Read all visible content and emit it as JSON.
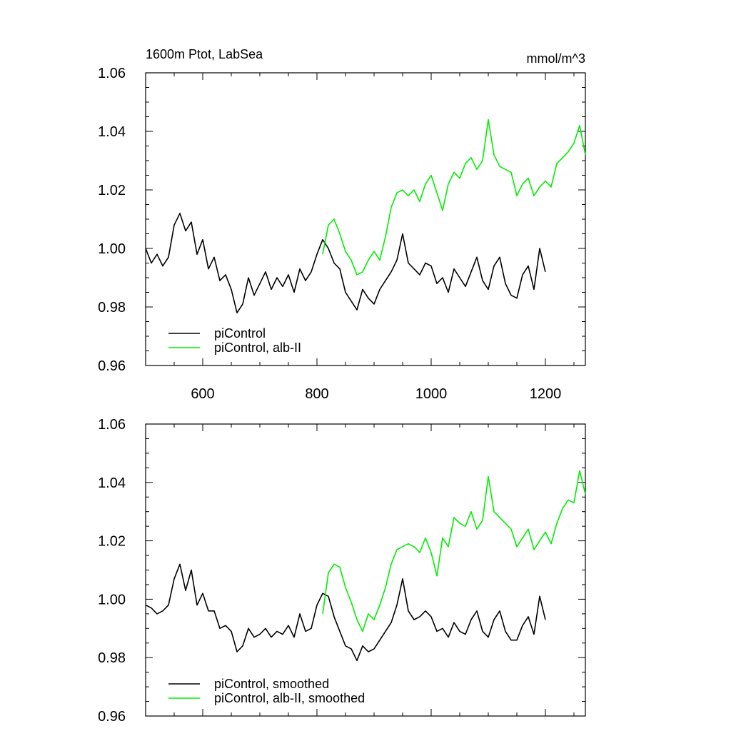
{
  "figure": {
    "left_title": "1600m Ptot, LabSea",
    "right_title": "mmol/m^3"
  },
  "chart_data": [
    {
      "type": "line",
      "xlabel": "",
      "ylabel": "",
      "xlim": [
        500,
        1270
      ],
      "ylim": [
        0.96,
        1.06
      ],
      "x_ticks": [
        600,
        800,
        1000,
        1200
      ],
      "x_tick_labels": [
        "600",
        "800",
        "1000",
        "1200"
      ],
      "y_ticks": [
        0.96,
        0.98,
        1.0,
        1.02,
        1.04,
        1.06
      ],
      "y_tick_labels": [
        "0.96",
        "0.98",
        "1.00",
        "1.02",
        "1.04",
        "1.06"
      ],
      "grid": false,
      "legend_position": "bottom-left",
      "series": [
        {
          "name": "piControl",
          "color": "#000000",
          "x": [
            500,
            510,
            520,
            530,
            540,
            550,
            560,
            570,
            580,
            590,
            600,
            610,
            620,
            630,
            640,
            650,
            660,
            670,
            680,
            690,
            700,
            710,
            720,
            730,
            740,
            750,
            760,
            770,
            780,
            790,
            800,
            810,
            820,
            830,
            840,
            850,
            860,
            870,
            880,
            890,
            900,
            910,
            920,
            930,
            940,
            950,
            960,
            970,
            980,
            990,
            1000,
            1010,
            1020,
            1030,
            1040,
            1050,
            1060,
            1070,
            1080,
            1090,
            1100,
            1110,
            1120,
            1130,
            1140,
            1150,
            1160,
            1170,
            1180,
            1190,
            1200
          ],
          "y": [
            1.0,
            0.995,
            0.998,
            0.994,
            0.997,
            1.008,
            1.012,
            1.006,
            1.009,
            0.998,
            1.003,
            0.993,
            0.997,
            0.989,
            0.991,
            0.986,
            0.978,
            0.981,
            0.99,
            0.984,
            0.988,
            0.992,
            0.986,
            0.99,
            0.987,
            0.991,
            0.985,
            0.993,
            0.989,
            0.992,
            0.998,
            1.003,
            1.0,
            0.995,
            0.993,
            0.985,
            0.982,
            0.979,
            0.986,
            0.983,
            0.981,
            0.986,
            0.989,
            0.992,
            0.996,
            1.005,
            0.995,
            0.993,
            0.991,
            0.995,
            0.994,
            0.988,
            0.99,
            0.985,
            0.993,
            0.99,
            0.987,
            0.992,
            0.997,
            0.989,
            0.986,
            0.994,
            0.997,
            0.988,
            0.984,
            0.983,
            0.991,
            0.994,
            0.986,
            1.0,
            0.992
          ]
        },
        {
          "name": "piControl, alb-II",
          "color": "#00ee00",
          "x": [
            810,
            820,
            830,
            840,
            850,
            860,
            870,
            880,
            890,
            900,
            910,
            920,
            930,
            940,
            950,
            960,
            970,
            980,
            990,
            1000,
            1010,
            1020,
            1030,
            1040,
            1050,
            1060,
            1070,
            1080,
            1090,
            1100,
            1110,
            1120,
            1130,
            1140,
            1150,
            1160,
            1170,
            1180,
            1190,
            1200,
            1210,
            1220,
            1230,
            1240,
            1250,
            1260,
            1270
          ],
          "y": [
            0.998,
            1.008,
            1.01,
            1.005,
            0.999,
            0.996,
            0.991,
            0.992,
            0.996,
            0.999,
            0.996,
            1.004,
            1.014,
            1.019,
            1.02,
            1.018,
            1.02,
            1.016,
            1.022,
            1.025,
            1.019,
            1.013,
            1.022,
            1.026,
            1.024,
            1.029,
            1.031,
            1.027,
            1.03,
            1.044,
            1.032,
            1.028,
            1.027,
            1.026,
            1.018,
            1.022,
            1.024,
            1.018,
            1.021,
            1.023,
            1.021,
            1.029,
            1.031,
            1.033,
            1.036,
            1.042,
            1.032
          ]
        }
      ]
    },
    {
      "type": "line",
      "xlabel": "",
      "ylabel": "",
      "xlim": [
        500,
        1270
      ],
      "ylim": [
        0.96,
        1.06
      ],
      "x_ticks": [
        600,
        800,
        1000,
        1200
      ],
      "y_ticks": [
        0.96,
        0.98,
        1.0,
        1.02,
        1.04,
        1.06
      ],
      "y_tick_labels": [
        "0.96",
        "0.98",
        "1.00",
        "1.02",
        "1.04",
        "1.06"
      ],
      "grid": false,
      "legend_position": "bottom-left",
      "series": [
        {
          "name": "piControl, smoothed",
          "color": "#000000",
          "x": [
            500,
            510,
            520,
            530,
            540,
            550,
            560,
            570,
            580,
            590,
            600,
            610,
            620,
            630,
            640,
            650,
            660,
            670,
            680,
            690,
            700,
            710,
            720,
            730,
            740,
            750,
            760,
            770,
            780,
            790,
            800,
            810,
            820,
            830,
            840,
            850,
            860,
            870,
            880,
            890,
            900,
            910,
            920,
            930,
            940,
            950,
            960,
            970,
            980,
            990,
            1000,
            1010,
            1020,
            1030,
            1040,
            1050,
            1060,
            1070,
            1080,
            1090,
            1100,
            1110,
            1120,
            1130,
            1140,
            1150,
            1160,
            1170,
            1180,
            1190,
            1200
          ],
          "y": [
            0.998,
            0.997,
            0.995,
            0.996,
            0.998,
            1.007,
            1.012,
            1.003,
            1.01,
            0.998,
            1.002,
            0.996,
            0.996,
            0.99,
            0.991,
            0.989,
            0.982,
            0.984,
            0.99,
            0.987,
            0.988,
            0.99,
            0.987,
            0.989,
            0.988,
            0.991,
            0.987,
            0.995,
            0.989,
            0.99,
            0.998,
            1.002,
            1.001,
            0.994,
            0.989,
            0.984,
            0.983,
            0.979,
            0.984,
            0.982,
            0.983,
            0.986,
            0.989,
            0.992,
            0.998,
            1.007,
            0.996,
            0.993,
            0.994,
            0.996,
            0.994,
            0.989,
            0.99,
            0.987,
            0.992,
            0.989,
            0.988,
            0.993,
            0.996,
            0.989,
            0.987,
            0.993,
            0.996,
            0.989,
            0.986,
            0.986,
            0.991,
            0.994,
            0.988,
            1.001,
            0.993
          ]
        },
        {
          "name": "piControl, alb-II, smoothed",
          "color": "#00ee00",
          "x": [
            810,
            820,
            830,
            840,
            850,
            860,
            870,
            880,
            890,
            900,
            910,
            920,
            930,
            940,
            950,
            960,
            970,
            980,
            990,
            1000,
            1010,
            1020,
            1030,
            1040,
            1050,
            1060,
            1070,
            1080,
            1090,
            1100,
            1110,
            1120,
            1130,
            1140,
            1150,
            1160,
            1170,
            1180,
            1190,
            1200,
            1210,
            1220,
            1230,
            1240,
            1250,
            1260,
            1270
          ],
          "y": [
            0.995,
            1.009,
            1.012,
            1.011,
            1.004,
            0.999,
            0.993,
            0.989,
            0.995,
            0.993,
            0.998,
            1.004,
            1.012,
            1.017,
            1.018,
            1.019,
            1.018,
            1.016,
            1.021,
            1.016,
            1.008,
            1.021,
            1.018,
            1.028,
            1.026,
            1.025,
            1.03,
            1.024,
            1.027,
            1.042,
            1.03,
            1.028,
            1.026,
            1.024,
            1.018,
            1.021,
            1.024,
            1.017,
            1.02,
            1.023,
            1.019,
            1.026,
            1.031,
            1.034,
            1.033,
            1.044,
            1.036
          ]
        }
      ]
    }
  ]
}
